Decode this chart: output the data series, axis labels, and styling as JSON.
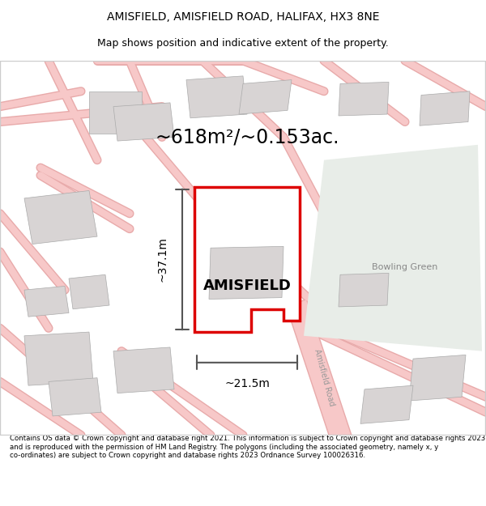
{
  "title_line1": "AMISFIELD, AMISFIELD ROAD, HALIFAX, HX3 8NE",
  "title_line2": "Map shows position and indicative extent of the property.",
  "area_label": "~618m²/~0.153ac.",
  "property_name": "AMISFIELD",
  "dim_vertical": "~37.1m",
  "dim_horizontal": "~21.5m",
  "bowling_green_label": "Bowling Green",
  "road_label": "Amisfield Road",
  "footer_text": "Contains OS data © Crown copyright and database right 2021. This information is subject to Crown copyright and database rights 2023 and is reproduced with the permission of HM Land Registry. The polygons (including the associated geometry, namely x, y co-ordinates) are subject to Crown copyright and database rights 2023 Ordnance Survey 100026316.",
  "bg_color": "#f5f5f5",
  "map_bg": "#f0eeee",
  "green_area_color": "#e8ede8",
  "plot_outline_color": "#dd0000",
  "building_color": "#d8d4d4",
  "road_color": "#f7c8c8",
  "dim_line_color": "#555555",
  "border_color": "#cccccc"
}
